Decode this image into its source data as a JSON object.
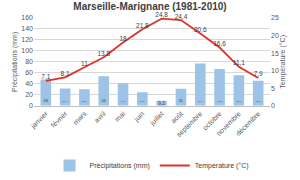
{
  "chart_data": {
    "type": "bar",
    "title": "Marseille-Marignane (1981-2010)",
    "categories": [
      "janvier",
      "février",
      "mars",
      "avril",
      "mai",
      "juin",
      "juillet",
      "août",
      "septembre",
      "octobre",
      "novembre",
      "décembre"
    ],
    "series": [
      {
        "name": "Précipitations (mm)",
        "type": "bar",
        "color": "#9dc3e6",
        "values": [
          48,
          31.4,
          30.4,
          54,
          41.1,
          24.5,
          9.2,
          31,
          77.1,
          67.2,
          55.7,
          45.8
        ],
        "value_labels": [
          "48",
          "31,4",
          "30,4",
          "54",
          "41,1",
          "24,5",
          "9,2",
          "31",
          "77,1",
          "67,2",
          "55,7",
          "45,8"
        ]
      },
      {
        "name": "Temperature (°C)",
        "type": "line",
        "axis": "y2",
        "color": "#e0302a",
        "values": [
          7.1,
          8.1,
          11,
          13.8,
          18,
          21.8,
          24.8,
          24.4,
          20.6,
          16.6,
          11.1,
          7.9
        ],
        "value_labels": [
          "7,1",
          "8,1",
          "11",
          "13,8",
          "18",
          "21,8",
          "24,8",
          "24,4",
          "20,6",
          "16,6",
          "11,1",
          "7,9"
        ]
      }
    ],
    "y_label": "Précipitations (mm)",
    "y2_label": "Température (°C)",
    "ylim": [
      0,
      160
    ],
    "yticks": [
      0,
      20,
      40,
      60,
      80,
      100,
      120,
      140,
      160
    ],
    "y2lim": [
      0,
      25
    ],
    "y2ticks": [
      0,
      5,
      10,
      15,
      20,
      25
    ],
    "grid": true,
    "legend": "bottom",
    "data_labels": true
  }
}
